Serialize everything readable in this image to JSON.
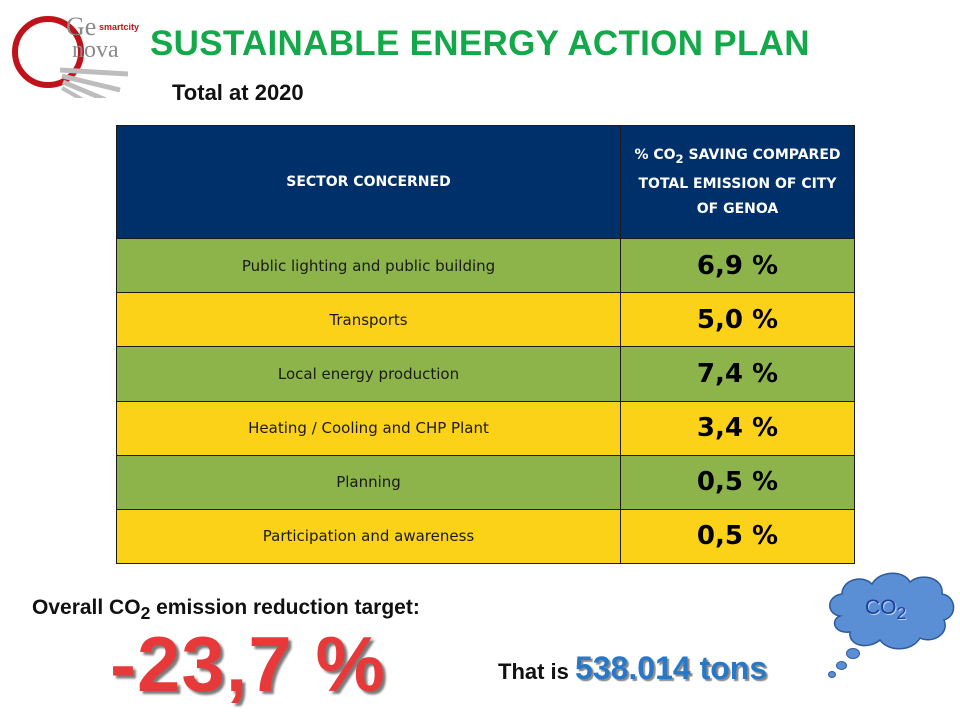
{
  "logo": {
    "ge": "Ge",
    "smartcity": "smartcity",
    "nova": "nova"
  },
  "title": "SUSTAINABLE ENERGY ACTION PLAN",
  "subtitle": "Total at 2020",
  "table": {
    "header_sector": "SECTOR CONCERNED",
    "header_saving_pre": "% CO",
    "header_saving_sub": "2",
    "header_saving_post": " SAVING COMPARED TOTAL EMISSION OF CITY OF GENOA",
    "rows": [
      {
        "sector": "Public lighting and public building",
        "value": "6,9 %"
      },
      {
        "sector": "Transports",
        "value": "5,0 %"
      },
      {
        "sector": "Local energy production",
        "value": "7,4 %"
      },
      {
        "sector": "Heating / Cooling and CHP Plant",
        "value": "3,4 %"
      },
      {
        "sector": "Planning",
        "value": "0,5 %"
      },
      {
        "sector": "Participation and awareness",
        "value": "0,5 %"
      }
    ]
  },
  "overall": {
    "label_pre": "Overall CO",
    "label_sub": "2",
    "label_post": " emission reduction target:",
    "target": "-23,7 %"
  },
  "that_is": {
    "prefix": "That is ",
    "tons": "538.014 tons"
  },
  "cloud": {
    "label": "CO",
    "sub": "2"
  },
  "colors": {
    "title_green": "#13a84a",
    "header_navy": "#00306a",
    "row_green": "#8cb44a",
    "row_yellow": "#fbd218",
    "target_red": "#e8393a",
    "tons_blue": "#2679c9",
    "cloud_blue": "#5a8fd6"
  }
}
